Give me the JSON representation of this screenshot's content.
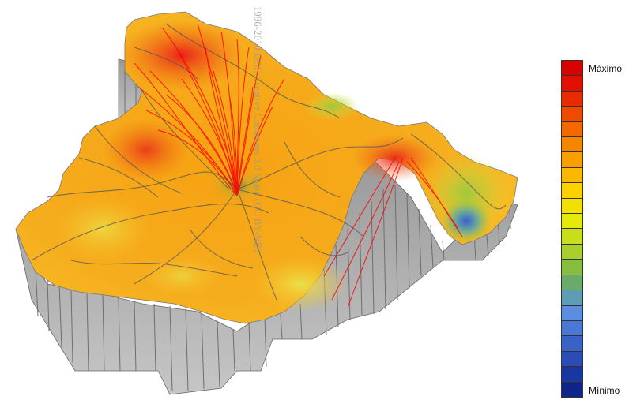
{
  "watermark": "1996-2010 BOE Creative Commons 3.0 Spain (CC BY-ND)",
  "legend": {
    "max_label": "Máximo",
    "min_label": "Mínimo",
    "colors": [
      "#d80000",
      "#e21000",
      "#ea2a00",
      "#ef4a00",
      "#f36800",
      "#f68500",
      "#f9a000",
      "#fbb800",
      "#fdd000",
      "#f2e000",
      "#e5ea0a",
      "#c9de1a",
      "#a8cf2c",
      "#88be40",
      "#6aaa6a",
      "#5e9cb6",
      "#5a8de0",
      "#4a78d6",
      "#3a62c6",
      "#2a4cb4",
      "#1a36a0",
      "#0e248a"
    ]
  },
  "map": {
    "surface_colors": {
      "high": "#e8221a",
      "upper": "#f26a10",
      "mid": "#f6a212",
      "lower": "#f9c52a",
      "low": "#e9e04a",
      "green": "#9cc93c",
      "blue": "#3d5fcf",
      "wall": "#b8b8b8",
      "roads": "#555555",
      "flow": "#ff0000"
    }
  }
}
